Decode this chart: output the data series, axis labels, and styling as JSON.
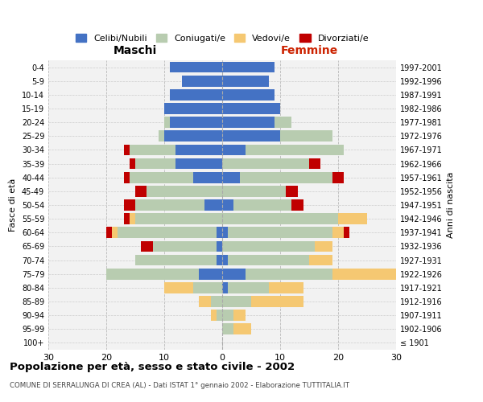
{
  "age_groups": [
    "100+",
    "95-99",
    "90-94",
    "85-89",
    "80-84",
    "75-79",
    "70-74",
    "65-69",
    "60-64",
    "55-59",
    "50-54",
    "45-49",
    "40-44",
    "35-39",
    "30-34",
    "25-29",
    "20-24",
    "15-19",
    "10-14",
    "5-9",
    "0-4"
  ],
  "birth_years": [
    "≤ 1901",
    "1902-1906",
    "1907-1911",
    "1912-1916",
    "1917-1921",
    "1922-1926",
    "1927-1931",
    "1932-1936",
    "1937-1941",
    "1942-1946",
    "1947-1951",
    "1952-1956",
    "1957-1961",
    "1962-1966",
    "1967-1971",
    "1972-1976",
    "1977-1981",
    "1982-1986",
    "1987-1991",
    "1992-1996",
    "1997-2001"
  ],
  "males": {
    "celibi": [
      0,
      0,
      0,
      0,
      0,
      4,
      1,
      1,
      1,
      0,
      3,
      0,
      5,
      8,
      8,
      10,
      9,
      10,
      9,
      7,
      9
    ],
    "coniugati": [
      0,
      0,
      1,
      2,
      5,
      16,
      14,
      11,
      17,
      15,
      12,
      13,
      11,
      7,
      8,
      1,
      1,
      0,
      0,
      0,
      0
    ],
    "vedovi": [
      0,
      0,
      1,
      2,
      5,
      0,
      0,
      0,
      1,
      1,
      0,
      0,
      0,
      0,
      0,
      0,
      0,
      0,
      0,
      0,
      0
    ],
    "divorziati": [
      0,
      0,
      0,
      0,
      0,
      0,
      0,
      2,
      1,
      1,
      2,
      2,
      1,
      1,
      1,
      0,
      0,
      0,
      0,
      0,
      0
    ]
  },
  "females": {
    "nubili": [
      0,
      0,
      0,
      0,
      1,
      4,
      1,
      0,
      1,
      0,
      2,
      0,
      3,
      0,
      4,
      10,
      9,
      10,
      9,
      8,
      9
    ],
    "coniugate": [
      0,
      2,
      2,
      5,
      7,
      15,
      14,
      16,
      18,
      20,
      10,
      11,
      16,
      15,
      17,
      9,
      3,
      0,
      0,
      0,
      0
    ],
    "vedove": [
      0,
      3,
      2,
      9,
      6,
      11,
      4,
      3,
      2,
      5,
      0,
      0,
      0,
      0,
      0,
      0,
      0,
      0,
      0,
      0,
      0
    ],
    "divorziate": [
      0,
      0,
      0,
      0,
      0,
      0,
      0,
      0,
      1,
      0,
      2,
      2,
      2,
      2,
      0,
      0,
      0,
      0,
      0,
      0,
      0
    ]
  },
  "colors": {
    "celibi_nubili": "#4472C4",
    "coniugati": "#B8CCB0",
    "vedovi": "#F5C872",
    "divorziati": "#C00000"
  },
  "xlim": 30,
  "title": "Popolazione per età, sesso e stato civile - 2002",
  "subtitle": "COMUNE DI SERRALUNGA DI CREA (AL) - Dati ISTAT 1° gennaio 2002 - Elaborazione TUTTITALIA.IT",
  "ylabel": "Fasce di età",
  "ylabel_right": "Anni di nascita",
  "xlabel_left": "Maschi",
  "xlabel_right": "Femmine"
}
